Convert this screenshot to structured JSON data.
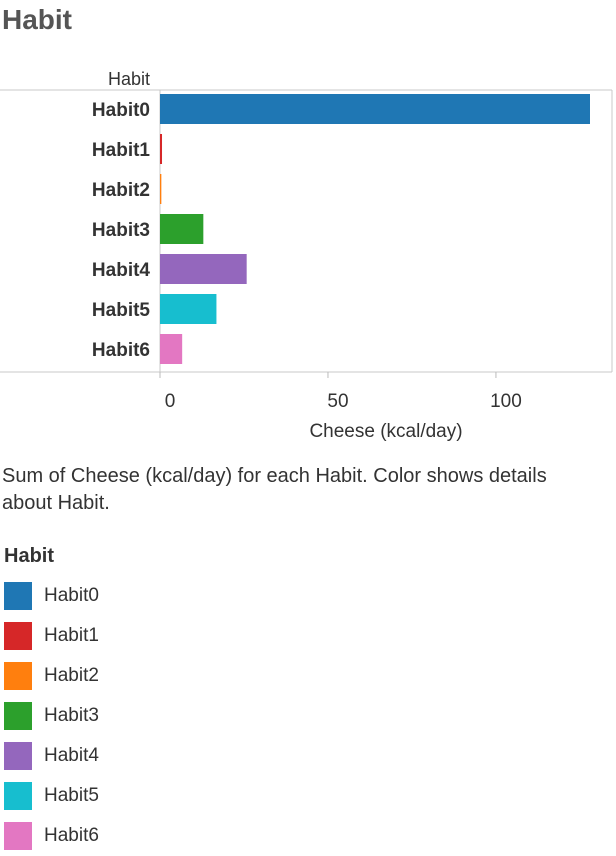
{
  "page": {
    "title": "Habit"
  },
  "chart_data": {
    "type": "bar",
    "orientation": "horizontal",
    "row_header": "Habit",
    "categories": [
      "Habit0",
      "Habit1",
      "Habit2",
      "Habit3",
      "Habit4",
      "Habit5",
      "Habit6"
    ],
    "values": [
      128,
      0.6,
      0.4,
      12.9,
      25.8,
      16.8,
      6.6
    ],
    "colors": [
      "#1f77b4",
      "#d62728",
      "#ff7f0e",
      "#2ca02c",
      "#9467bd",
      "#17becf",
      "#e377c2"
    ],
    "xlabel": "Cheese (kcal/day)",
    "xlim": [
      0,
      128
    ],
    "xticks": [
      0,
      50,
      100
    ],
    "grid": false
  },
  "caption": "Sum of Cheese (kcal/day) for each Habit.  Color shows details about Habit.",
  "legend": {
    "title": "Habit",
    "items": [
      {
        "label": "Habit0",
        "color": "#1f77b4"
      },
      {
        "label": "Habit1",
        "color": "#d62728"
      },
      {
        "label": "Habit2",
        "color": "#ff7f0e"
      },
      {
        "label": "Habit3",
        "color": "#2ca02c"
      },
      {
        "label": "Habit4",
        "color": "#9467bd"
      },
      {
        "label": "Habit5",
        "color": "#17becf"
      },
      {
        "label": "Habit6",
        "color": "#e377c2"
      }
    ]
  }
}
